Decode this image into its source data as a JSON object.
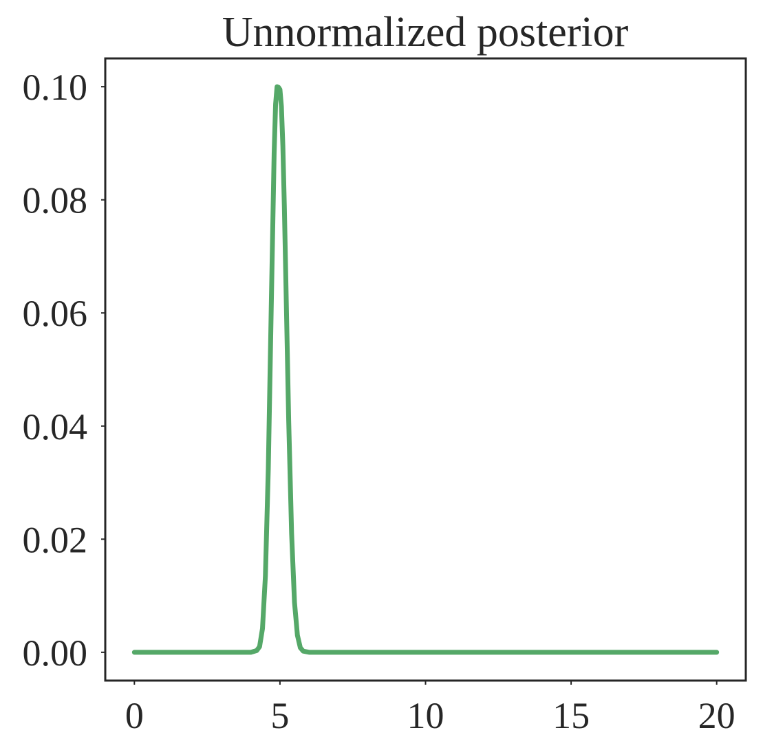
{
  "chart_data": {
    "type": "line",
    "title": "Unnormalized posterior",
    "xlabel": "",
    "ylabel": "",
    "xlim": [
      -1,
      21
    ],
    "ylim": [
      -0.005,
      0.105
    ],
    "x_ticks": [
      0,
      5,
      10,
      15,
      20
    ],
    "x_tick_labels": [
      "0",
      "5",
      "10",
      "15",
      "20"
    ],
    "y_ticks": [
      0.0,
      0.02,
      0.04,
      0.06,
      0.08,
      0.1
    ],
    "y_tick_labels": [
      "0.00",
      "0.02",
      "0.04",
      "0.06",
      "0.08",
      "0.10"
    ],
    "grid": false,
    "legend": "none",
    "series": [
      {
        "color": "#55a868",
        "x": [
          0,
          1,
          2,
          3,
          4,
          4.2,
          4.3,
          4.4,
          4.5,
          4.6,
          4.7,
          4.8,
          4.85,
          4.9,
          4.95,
          5.0,
          5.05,
          5.1,
          5.15,
          5.2,
          5.3,
          5.4,
          5.5,
          5.6,
          5.7,
          5.8,
          6,
          8,
          10,
          12,
          14,
          16,
          18,
          20
        ],
        "y": [
          0.0,
          0.0,
          0.0,
          0.0,
          0.0,
          0.0003,
          0.001,
          0.0042,
          0.0135,
          0.0325,
          0.0607,
          0.0882,
          0.0969,
          0.1,
          0.0999,
          0.0995,
          0.0965,
          0.0895,
          0.079,
          0.0665,
          0.041,
          0.021,
          0.0088,
          0.003,
          0.0008,
          0.0002,
          0.0,
          0.0,
          0.0,
          0.0,
          0.0,
          0.0,
          0.0,
          0.0
        ]
      }
    ]
  }
}
